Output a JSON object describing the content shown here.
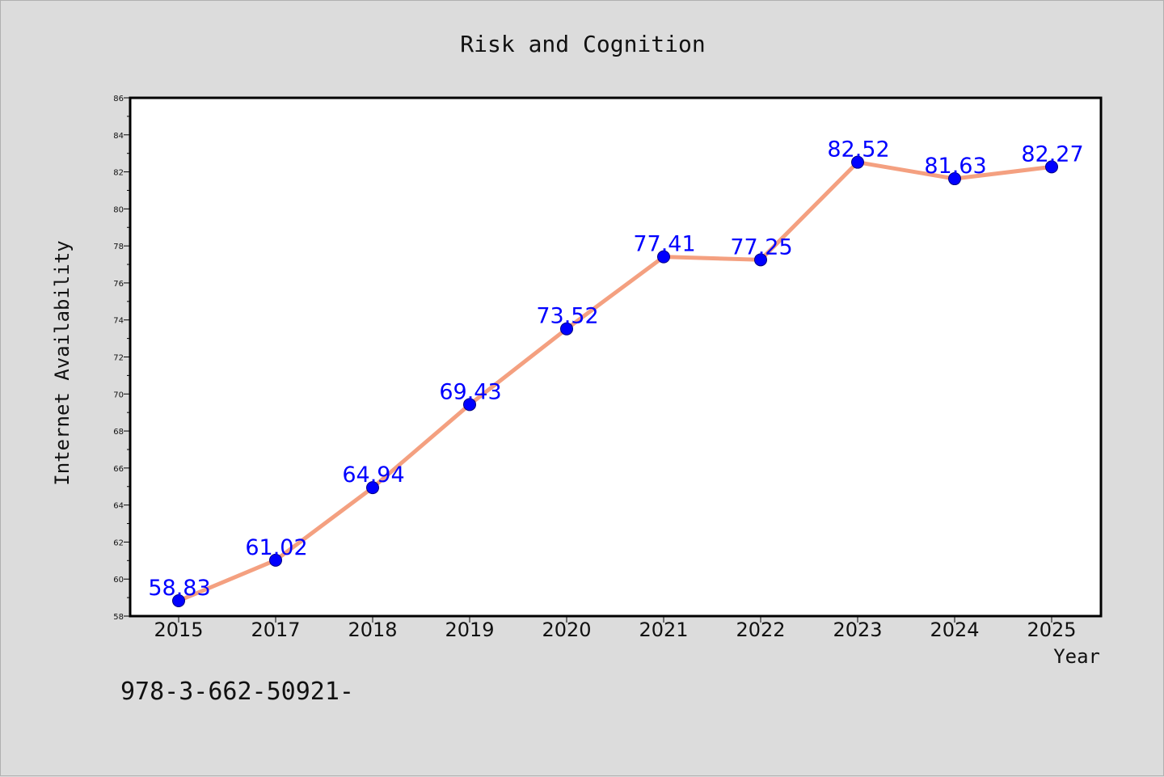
{
  "chart_data": {
    "type": "line",
    "title": "Risk and Cognition",
    "xlabel": "Year",
    "ylabel": "Internet Availability",
    "categories": [
      "2015",
      "2017",
      "2018",
      "2019",
      "2020",
      "2021",
      "2022",
      "2023",
      "2024",
      "2025"
    ],
    "series": [
      {
        "values": [
          58.83,
          61.02,
          64.94,
          69.43,
          73.52,
          77.41,
          77.25,
          82.52,
          81.63,
          82.27
        ]
      }
    ],
    "data_labels": [
      "58.83",
      "61.02",
      "64.94",
      "69.43",
      "73.52",
      "77.41",
      "77.25",
      "82.52",
      "81.63",
      "82.27"
    ],
    "ylim": [
      58,
      86
    ],
    "yticks": [
      58,
      60,
      62,
      64,
      66,
      68,
      70,
      72,
      74,
      76,
      78,
      80,
      82,
      84,
      86
    ],
    "grid": false,
    "legend": "none",
    "colors": {
      "line": "#f4a080",
      "marker_fill": "#0000ff",
      "marker_edge": "#000080",
      "label": "#0000ff",
      "background": "#dcdcdc",
      "plot_area": "#ffffff"
    }
  },
  "footer_text": "978-3-662-50921-"
}
